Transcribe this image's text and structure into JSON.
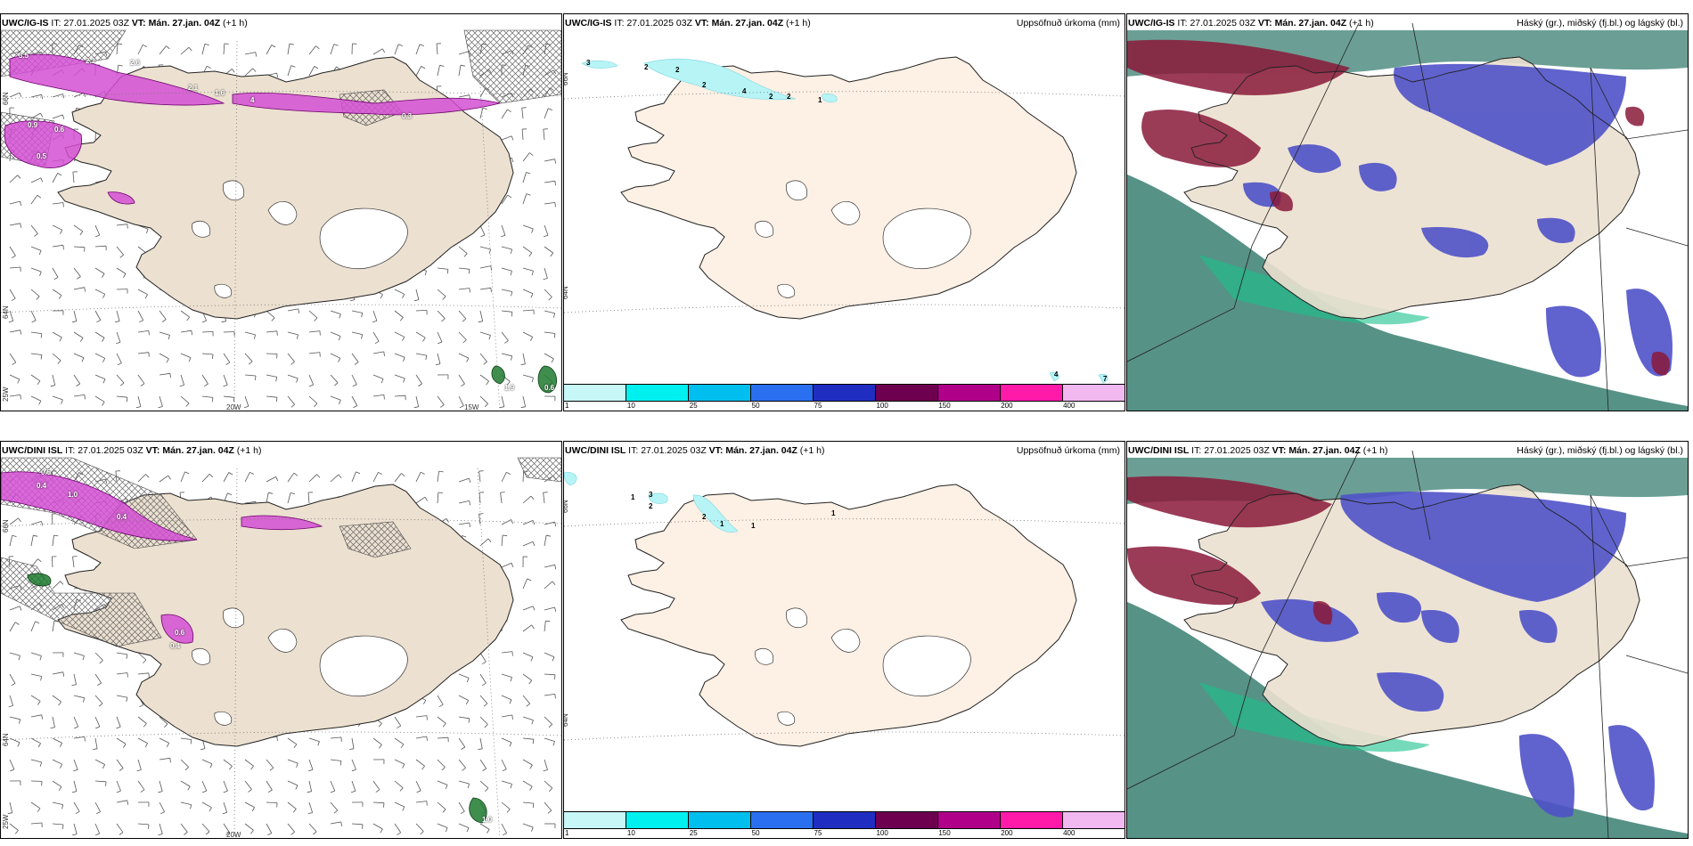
{
  "panels": [
    {
      "id": "ig-wind",
      "model": "UWC/IG-IS",
      "it_label": "IT:",
      "it_value": "27.01.2025 03Z",
      "vt_label": "VT:",
      "vt_value": "Mán. 27.jan. 04Z",
      "offset": "(+1 h)",
      "right_title": "",
      "axis": {
        "lat66": "66N",
        "lat64": "64N",
        "lon25": "25W",
        "lon20": "20W",
        "lon15": "15W"
      },
      "values": [
        "3.5",
        "2.1",
        "2.6",
        "2.1",
        "1.6",
        "0.9",
        "0.6",
        "0.5",
        "4",
        "0.3",
        "1.9",
        "0.6"
      ]
    },
    {
      "id": "ig-precip",
      "model": "UWC/IG-IS",
      "it_label": "IT:",
      "it_value": "27.01.2025 03Z",
      "vt_label": "VT:",
      "vt_value": "Mán. 27.jan. 04Z",
      "offset": "(+1 h)",
      "right_title": "Uppsöfnuð úrkoma (mm)",
      "axis": {
        "lat66": "66N",
        "lat64": "64N"
      },
      "values": [
        "3",
        "2",
        "2",
        "2",
        "4",
        "2",
        "2",
        "1",
        "4",
        "7"
      ]
    },
    {
      "id": "ig-cloud",
      "model": "UWC/IG-IS",
      "it_label": "IT:",
      "it_value": "27.01.2025 03Z",
      "vt_label": "VT:",
      "vt_value": "Mán. 27.jan. 04Z",
      "offset": "(+1 h)",
      "right_title": "Háský (gr.), miðský (fj.bl.) og lágský (bl.)",
      "axis": {},
      "values": []
    },
    {
      "id": "dini-wind",
      "model": "UWC/DINI ISL",
      "it_label": "IT:",
      "it_value": "27.01.2025 03Z",
      "vt_label": "VT:",
      "vt_value": "Mán. 27.jan. 04Z",
      "offset": "(+1 h)",
      "right_title": "",
      "axis": {
        "lat66": "66N",
        "lat64": "64N",
        "lon25": "25W",
        "lon20": "20W"
      },
      "values": [
        "0.5",
        "0.4",
        "1.0",
        "0.4",
        "0.6",
        "0.4",
        "1.0"
      ]
    },
    {
      "id": "dini-precip",
      "model": "UWC/DINI ISL",
      "it_label": "IT:",
      "it_value": "27.01.2025 03Z",
      "vt_label": "VT:",
      "vt_value": "Mán. 27.jan. 04Z",
      "offset": "(+1 h)",
      "right_title": "Uppsöfnuð úrkoma (mm)",
      "axis": {
        "lat66": "66N",
        "lat64": "64N"
      },
      "values": [
        "1",
        "3",
        "2",
        "2",
        "1",
        "1",
        "1"
      ]
    },
    {
      "id": "dini-cloud",
      "model": "UWC/DINI ISL",
      "it_label": "IT:",
      "it_value": "27.01.2025 03Z",
      "vt_label": "VT:",
      "vt_value": "Mán. 27.jan. 04Z",
      "offset": "(+1 h)",
      "right_title": "Háský (gr.), miðský (fj.bl.) og lágský (bl.)",
      "axis": {},
      "values": []
    }
  ],
  "colorbar": {
    "labels": [
      "1",
      "10",
      "25",
      "50",
      "75",
      "100",
      "150",
      "200",
      "400"
    ],
    "colors": [
      "#c8f7f7",
      "#00f0f0",
      "#00bfee",
      "#2a6ff0",
      "#1f2ec0",
      "#6e0050",
      "#b0008a",
      "#ff1aaa",
      "#f2b8f0"
    ]
  },
  "colors": {
    "land": "#ece0d0",
    "land_precip": "#fdf0e4",
    "wind_precip": "#d44fd4",
    "high_cloud": "#3a7f72",
    "mid_cloud": "#4f52c8",
    "low_cloud": "#8a1a3a"
  }
}
